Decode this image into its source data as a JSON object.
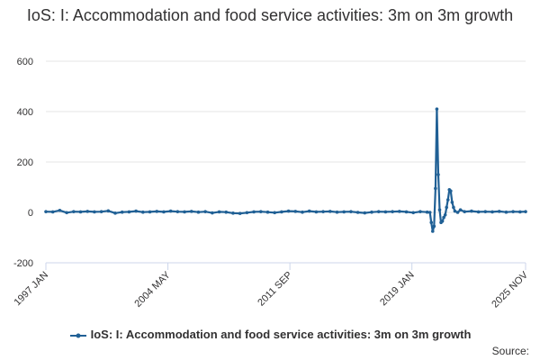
{
  "title": "IoS: I: Accommodation and food service activities: 3m on 3m growth",
  "source_label": "Source:",
  "colors": {
    "series": "#206095",
    "grid": "#e6e6e6",
    "axis": "#ccd6eb",
    "text": "#323132"
  },
  "chart_data": {
    "type": "line",
    "title": "IoS: I: Accommodation and food service activities: 3m on 3m growth",
    "xlabel": "",
    "ylabel": "",
    "ylim": [
      -200,
      600
    ],
    "yticks": [
      "-200",
      "0",
      "200",
      "400",
      "600"
    ],
    "xlim": [
      "1997 JAN",
      "2025 NOV"
    ],
    "xticks": [
      "1997 JAN",
      "2004 MAY",
      "2011 SEP",
      "2019 JAN",
      "2025 NOV"
    ],
    "grid": true,
    "legend": "bottom",
    "series": [
      {
        "name": "IoS: I: Accommodation and food service activities: 3m on 3m growth",
        "color": "#206095",
        "points": [
          [
            "1997 JAN",
            3
          ],
          [
            "1997 JUN",
            2
          ],
          [
            "1997 NOV",
            8
          ],
          [
            "1998 APR",
            -1
          ],
          [
            "1998 SEP",
            3
          ],
          [
            "1999 FEB",
            2
          ],
          [
            "1999 JUL",
            4
          ],
          [
            "1999 DEC",
            2
          ],
          [
            "2000 MAY",
            3
          ],
          [
            "2000 OCT",
            6
          ],
          [
            "2001 MAR",
            -3
          ],
          [
            "2001 AUG",
            1
          ],
          [
            "2002 JAN",
            2
          ],
          [
            "2002 JUN",
            5
          ],
          [
            "2002 NOV",
            1
          ],
          [
            "2003 APR",
            2
          ],
          [
            "2003 SEP",
            4
          ],
          [
            "2004 FEB",
            2
          ],
          [
            "2004 JUL",
            5
          ],
          [
            "2004 DEC",
            3
          ],
          [
            "2005 MAY",
            2
          ],
          [
            "2005 OCT",
            4
          ],
          [
            "2006 MAR",
            1
          ],
          [
            "2006 AUG",
            3
          ],
          [
            "2007 JAN",
            -2
          ],
          [
            "2007 JUN",
            2
          ],
          [
            "2007 NOV",
            1
          ],
          [
            "2008 APR",
            -3
          ],
          [
            "2008 SEP",
            -4
          ],
          [
            "2009 FEB",
            -1
          ],
          [
            "2009 JUL",
            2
          ],
          [
            "2009 DEC",
            3
          ],
          [
            "2010 MAY",
            1
          ],
          [
            "2010 OCT",
            -1
          ],
          [
            "2011 MAR",
            2
          ],
          [
            "2011 AUG",
            5
          ],
          [
            "2012 JAN",
            4
          ],
          [
            "2012 JUN",
            1
          ],
          [
            "2012 NOV",
            5
          ],
          [
            "2013 APR",
            2
          ],
          [
            "2013 SEP",
            3
          ],
          [
            "2014 FEB",
            4
          ],
          [
            "2014 JUL",
            1
          ],
          [
            "2014 DEC",
            2
          ],
          [
            "2015 MAY",
            3
          ],
          [
            "2015 OCT",
            0
          ],
          [
            "2016 MAR",
            -2
          ],
          [
            "2016 AUG",
            1
          ],
          [
            "2017 JAN",
            3
          ],
          [
            "2017 JUN",
            2
          ],
          [
            "2017 NOV",
            3
          ],
          [
            "2018 APR",
            4
          ],
          [
            "2018 SEP",
            2
          ],
          [
            "2019 FEB",
            -1
          ],
          [
            "2019 JUL",
            3
          ],
          [
            "2019 DEC",
            1
          ],
          [
            "2020 FEB",
            0
          ],
          [
            "2020 MAR",
            -40
          ],
          [
            "2020 APR",
            -75
          ],
          [
            "2020 MAY",
            -55
          ],
          [
            "2020 JUN",
            95
          ],
          [
            "2020 JUL",
            410
          ],
          [
            "2020 AUG",
            150
          ],
          [
            "2020 SEP",
            10
          ],
          [
            "2020 OCT",
            -40
          ],
          [
            "2020 NOV",
            -35
          ],
          [
            "2020 DEC",
            -20
          ],
          [
            "2021 JAN",
            -10
          ],
          [
            "2021 FEB",
            20
          ],
          [
            "2021 MAR",
            50
          ],
          [
            "2021 APR",
            90
          ],
          [
            "2021 MAY",
            85
          ],
          [
            "2021 JUN",
            40
          ],
          [
            "2021 JUL",
            20
          ],
          [
            "2021 AUG",
            5
          ],
          [
            "2021 OCT",
            0
          ],
          [
            "2021 DEC",
            10
          ],
          [
            "2022 MAR",
            3
          ],
          [
            "2022 AUG",
            5
          ],
          [
            "2023 JAN",
            2
          ],
          [
            "2023 JUN",
            3
          ],
          [
            "2023 NOV",
            2
          ],
          [
            "2024 APR",
            4
          ],
          [
            "2024 SEP",
            1
          ],
          [
            "2025 FEB",
            3
          ],
          [
            "2025 JUL",
            2
          ],
          [
            "2025 NOV",
            3
          ]
        ]
      }
    ]
  }
}
